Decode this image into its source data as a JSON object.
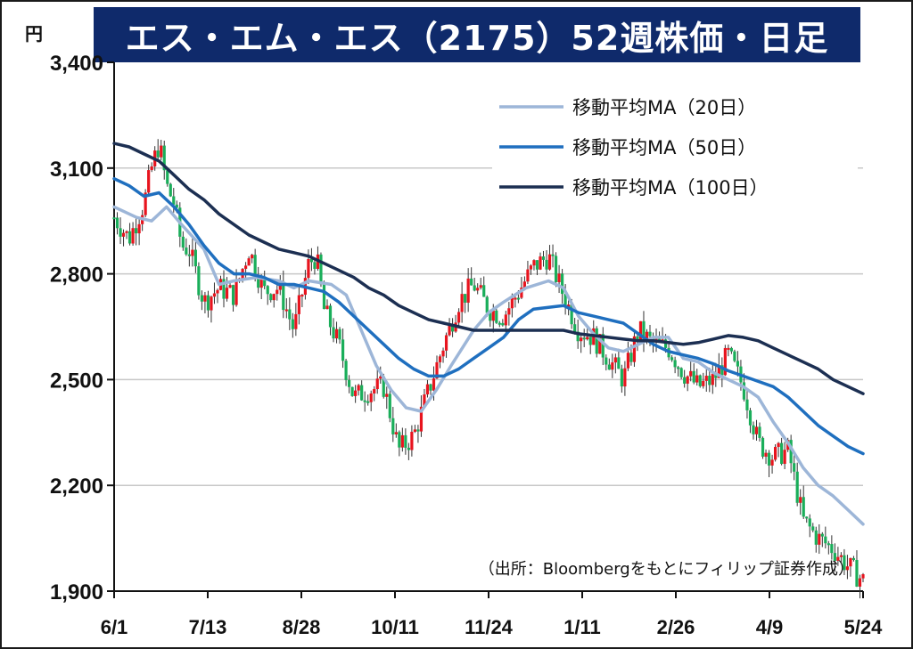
{
  "chart_data": {
    "type": "candlestick",
    "title": "エス・エム・エス（2175）52週株価・日足",
    "unit_label": "円",
    "ylim": [
      1900,
      3400
    ],
    "yticks": [
      "3,400",
      "3,100",
      "2,800",
      "2,500",
      "2,200",
      "1,900"
    ],
    "ytick_values": [
      3400,
      3100,
      2800,
      2500,
      2200,
      1900
    ],
    "xticks": [
      "6/1",
      "7/13",
      "8/28",
      "10/11",
      "11/24",
      "1/11",
      "2/26",
      "4/9",
      "5/24"
    ],
    "grid": true,
    "legend_position": "top-right",
    "source": "（出所：Bloombergをもとにフィリップ証券作成）",
    "colors": {
      "up": "#e8141e",
      "down": "#1aae5a",
      "ma20": "#9db6d8",
      "ma50": "#1f6fbf",
      "ma100": "#1c2f52"
    },
    "series": [
      {
        "name": "移動平均MA（20日）",
        "key": "ma20",
        "x": [
          0,
          3,
          5,
          7,
          9,
          12,
          14,
          16,
          19,
          22,
          24,
          26,
          29,
          31,
          33,
          35,
          37,
          39,
          41,
          43,
          45,
          48,
          50,
          52,
          55,
          58,
          60,
          62,
          64,
          66,
          68,
          70,
          72,
          74,
          76,
          78,
          80,
          82,
          84,
          86,
          88,
          90,
          92,
          94,
          96,
          98,
          100
        ],
        "y": [
          2990,
          2960,
          2950,
          2990,
          2940,
          2870,
          2770,
          2780,
          2790,
          2780,
          2760,
          2780,
          2770,
          2740,
          2640,
          2540,
          2470,
          2420,
          2410,
          2470,
          2540,
          2640,
          2690,
          2720,
          2760,
          2780,
          2760,
          2680,
          2630,
          2590,
          2580,
          2600,
          2620,
          2620,
          2560,
          2550,
          2520,
          2500,
          2480,
          2450,
          2380,
          2320,
          2250,
          2200,
          2170,
          2130,
          2090
        ]
      },
      {
        "name": "移動平均MA（50日）",
        "key": "ma50",
        "x": [
          0,
          2,
          4,
          6,
          8,
          10,
          12,
          14,
          16,
          18,
          20,
          22,
          24,
          26,
          28,
          30,
          32,
          34,
          36,
          38,
          40,
          42,
          44,
          46,
          48,
          50,
          52,
          54,
          56,
          58,
          60,
          62,
          64,
          66,
          68,
          70,
          72,
          74,
          76,
          78,
          80,
          82,
          84,
          86,
          88,
          90,
          92,
          94,
          96,
          98,
          100
        ],
        "y": [
          3070,
          3050,
          3020,
          3030,
          2990,
          2940,
          2880,
          2830,
          2800,
          2800,
          2790,
          2770,
          2770,
          2760,
          2750,
          2720,
          2680,
          2640,
          2600,
          2560,
          2530,
          2510,
          2510,
          2530,
          2560,
          2590,
          2620,
          2670,
          2700,
          2705,
          2710,
          2690,
          2680,
          2670,
          2660,
          2630,
          2600,
          2580,
          2570,
          2560,
          2545,
          2525,
          2510,
          2495,
          2480,
          2450,
          2410,
          2370,
          2340,
          2310,
          2290
        ]
      },
      {
        "name": "移動平均MA（100日）",
        "key": "ma100",
        "x": [
          0,
          2,
          4,
          6,
          8,
          10,
          12,
          14,
          16,
          18,
          20,
          22,
          24,
          26,
          28,
          30,
          32,
          34,
          36,
          38,
          40,
          42,
          44,
          46,
          48,
          50,
          52,
          54,
          56,
          58,
          60,
          62,
          64,
          66,
          68,
          70,
          72,
          74,
          76,
          78,
          80,
          82,
          84,
          86,
          88,
          90,
          92,
          94,
          96,
          98,
          100
        ],
        "y": [
          3170,
          3160,
          3140,
          3120,
          3080,
          3040,
          3010,
          2970,
          2940,
          2910,
          2890,
          2870,
          2860,
          2850,
          2830,
          2810,
          2790,
          2760,
          2740,
          2710,
          2690,
          2670,
          2660,
          2650,
          2640,
          2640,
          2640,
          2640,
          2640,
          2640,
          2640,
          2630,
          2625,
          2620,
          2615,
          2610,
          2610,
          2605,
          2600,
          2605,
          2615,
          2625,
          2620,
          2610,
          2590,
          2570,
          2550,
          2530,
          2500,
          2480,
          2460
        ]
      },
      {
        "name": "price",
        "key": "price",
        "x": [
          0,
          2,
          4,
          5,
          6,
          7,
          8,
          9,
          10,
          12,
          14,
          16,
          18,
          20,
          22,
          24,
          26,
          27,
          28,
          30,
          32,
          34,
          36,
          38,
          40,
          42,
          44,
          46,
          48,
          50,
          52,
          54,
          56,
          58,
          60,
          62,
          64,
          66,
          68,
          70,
          72,
          74,
          76,
          78,
          80,
          82,
          84,
          86,
          88,
          90,
          92,
          94,
          96,
          98,
          100
        ],
        "y": [
          2960,
          2900,
          3000,
          3100,
          3170,
          3050,
          3000,
          2880,
          2870,
          2720,
          2760,
          2740,
          2870,
          2750,
          2760,
          2640,
          2830,
          2850,
          2700,
          2600,
          2450,
          2470,
          2480,
          2300,
          2340,
          2470,
          2600,
          2720,
          2770,
          2700,
          2680,
          2750,
          2820,
          2850,
          2740,
          2640,
          2620,
          2560,
          2500,
          2640,
          2600,
          2590,
          2520,
          2480,
          2500,
          2570,
          2480,
          2320,
          2280,
          2300,
          2100,
          2050,
          2020,
          1970,
          1930
        ]
      }
    ]
  }
}
